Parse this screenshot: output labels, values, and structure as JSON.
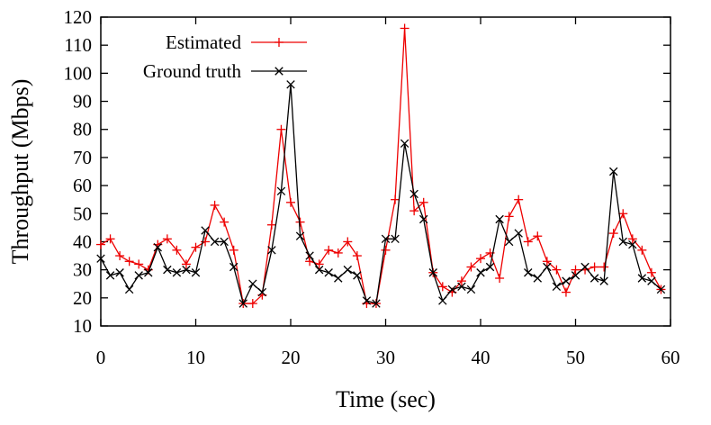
{
  "chart_data": {
    "type": "line",
    "title": "",
    "xlabel": "Time (sec)",
    "ylabel": "Throughput (Mbps)",
    "xlim": [
      0,
      60
    ],
    "ylim": [
      10,
      120
    ],
    "xticks": [
      0,
      10,
      20,
      30,
      40,
      50,
      60
    ],
    "yticks": [
      10,
      20,
      30,
      40,
      50,
      60,
      70,
      80,
      90,
      100,
      110,
      120
    ],
    "grid": false,
    "legend_position": "top-left",
    "x": [
      0,
      1,
      2,
      3,
      4,
      5,
      6,
      7,
      8,
      9,
      10,
      11,
      12,
      13,
      14,
      15,
      16,
      17,
      18,
      19,
      20,
      21,
      22,
      23,
      24,
      25,
      26,
      27,
      28,
      29,
      30,
      31,
      32,
      33,
      34,
      35,
      36,
      37,
      38,
      39,
      40,
      41,
      42,
      43,
      44,
      45,
      46,
      47,
      48,
      49,
      50,
      51,
      52,
      53,
      54,
      55,
      56,
      57,
      58,
      59
    ],
    "series": [
      {
        "name": "Estimated",
        "color": "#ee0000",
        "marker": "plus",
        "values": [
          39,
          41,
          35,
          33,
          32,
          30,
          39,
          41,
          37,
          32,
          38,
          40,
          53,
          47,
          37,
          18,
          18,
          21,
          46,
          80,
          54,
          47,
          33,
          32,
          37,
          36,
          40,
          35,
          18,
          18,
          37,
          55,
          116,
          51,
          54,
          29,
          24,
          22,
          26,
          31,
          34,
          36,
          27,
          49,
          55,
          40,
          42,
          33,
          30,
          22,
          30,
          30,
          31,
          31,
          43,
          50,
          41,
          37,
          29,
          23
        ]
      },
      {
        "name": "Ground truth",
        "color": "#000000",
        "marker": "x",
        "values": [
          34,
          28,
          29,
          23,
          28,
          29,
          38,
          30,
          29,
          30,
          29,
          44,
          40,
          40,
          31,
          18,
          25,
          22,
          37,
          58,
          96,
          42,
          35,
          30,
          29,
          27,
          30,
          28,
          19,
          18,
          41,
          41,
          75,
          57,
          48,
          29,
          19,
          23,
          24,
          23,
          29,
          31,
          48,
          40,
          43,
          29,
          27,
          31,
          24,
          26,
          28,
          31,
          27,
          26,
          65,
          40,
          39,
          27,
          26,
          23
        ]
      }
    ]
  }
}
